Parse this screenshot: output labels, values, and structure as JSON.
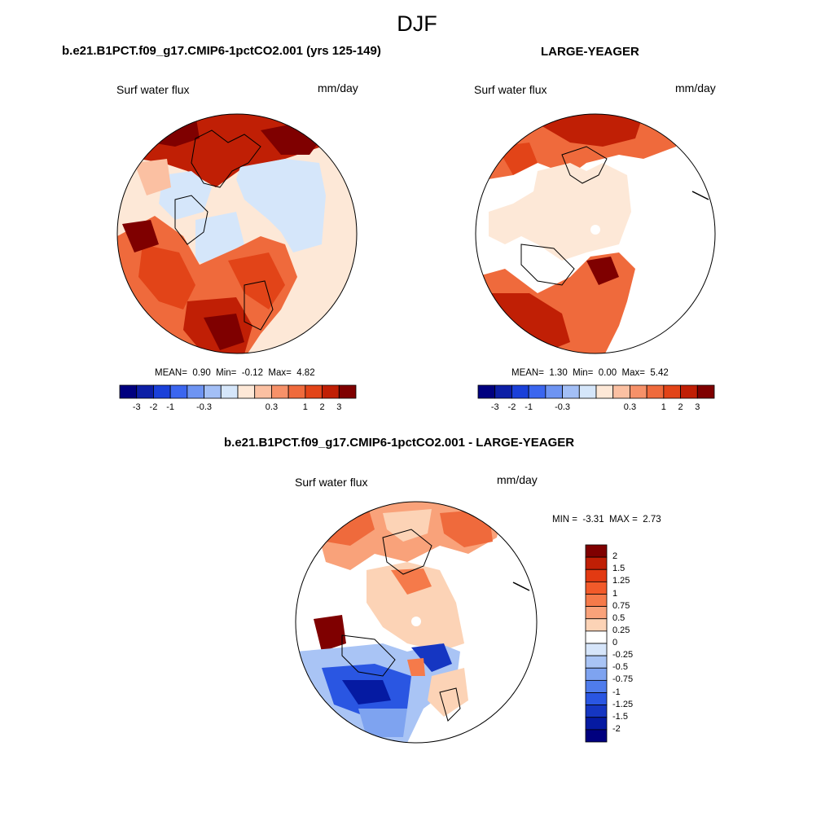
{
  "figure": {
    "season": "DJF"
  },
  "panels": [
    {
      "title": "b.e21.B1PCT.f09_g17.CMIP6-1pctCO2.001 (yrs 125-149)",
      "variable": "Surf water flux",
      "units": "mm/day",
      "stats": {
        "mean_label": "MEAN=",
        "mean": "0.90",
        "min_label": "Min=",
        "min": "-0.12",
        "max_label": "Max=",
        "max": "4.82"
      }
    },
    {
      "title": "LARGE-YEAGER",
      "variable": "Surf water flux",
      "units": "mm/day",
      "stats": {
        "mean_label": "MEAN=",
        "mean": "1.30",
        "min_label": "Min=",
        "min": "0.00",
        "max_label": "Max=",
        "max": "5.42"
      }
    },
    {
      "title": "b.e21.B1PCT.f09_g17.CMIP6-1pctCO2.001 - LARGE-YEAGER",
      "variable": "Surf water flux",
      "units": "mm/day",
      "stats": {
        "min_label": "MIN =",
        "min": "-3.31",
        "max_label": "MAX =",
        "max": "2.73"
      }
    }
  ],
  "colorbar_top": {
    "colors": [
      "#00007f",
      "#0d1fa6",
      "#1a40d9",
      "#3b66ef",
      "#6e94f2",
      "#a3bff6",
      "#d5e6fa",
      "#fde8d7",
      "#fbc0a2",
      "#f69169",
      "#ef6a3c",
      "#e24418",
      "#c01f05",
      "#7f0000"
    ],
    "ticks": [
      "-3",
      "-2",
      "-1",
      "-0.3",
      "0.3",
      "1",
      "2",
      "3"
    ]
  },
  "colorbar_diff": {
    "colors": [
      "#7f0000",
      "#c01f05",
      "#e23a12",
      "#f25a2a",
      "#f57a4a",
      "#f9a27a",
      "#fcd3b6",
      "#ffffff",
      "#d6e5fa",
      "#a9c4f5",
      "#7ea3f0",
      "#4f7cec",
      "#2a56e2",
      "#1536c2",
      "#051aa2",
      "#00007f"
    ],
    "labels": [
      "2",
      "1.5",
      "1.25",
      "1",
      "0.75",
      "0.5",
      "0.25",
      "0",
      "-0.25",
      "-0.5",
      "-0.75",
      "-1",
      "-1.25",
      "-1.5",
      "-2"
    ]
  },
  "chart_data": {
    "type": "heatmap",
    "title": "DJF",
    "maps": [
      {
        "name": "b.e21.B1PCT.f09_g17.CMIP6-1pctCO2.001 (yrs 125-149)",
        "variable": "Surf water flux",
        "units": "mm/day",
        "mean": 0.9,
        "min": -0.12,
        "max": 4.82
      },
      {
        "name": "LARGE-YEAGER",
        "variable": "Surf water flux",
        "units": "mm/day",
        "mean": 1.3,
        "min": 0.0,
        "max": 5.42
      },
      {
        "name": "b.e21.B1PCT.f09_g17.CMIP6-1pctCO2.001 - LARGE-YEAGER",
        "variable": "Surf water flux",
        "units": "mm/day",
        "min": -3.31,
        "max": 2.73
      }
    ],
    "levels_top": [
      -3,
      -2,
      -1,
      -0.3,
      0.3,
      1,
      2,
      3
    ],
    "levels_diff": [
      2,
      1.5,
      1.25,
      1,
      0.75,
      0.5,
      0.25,
      0,
      -0.25,
      -0.5,
      -0.75,
      -1,
      -1.25,
      -1.5,
      -2
    ]
  }
}
